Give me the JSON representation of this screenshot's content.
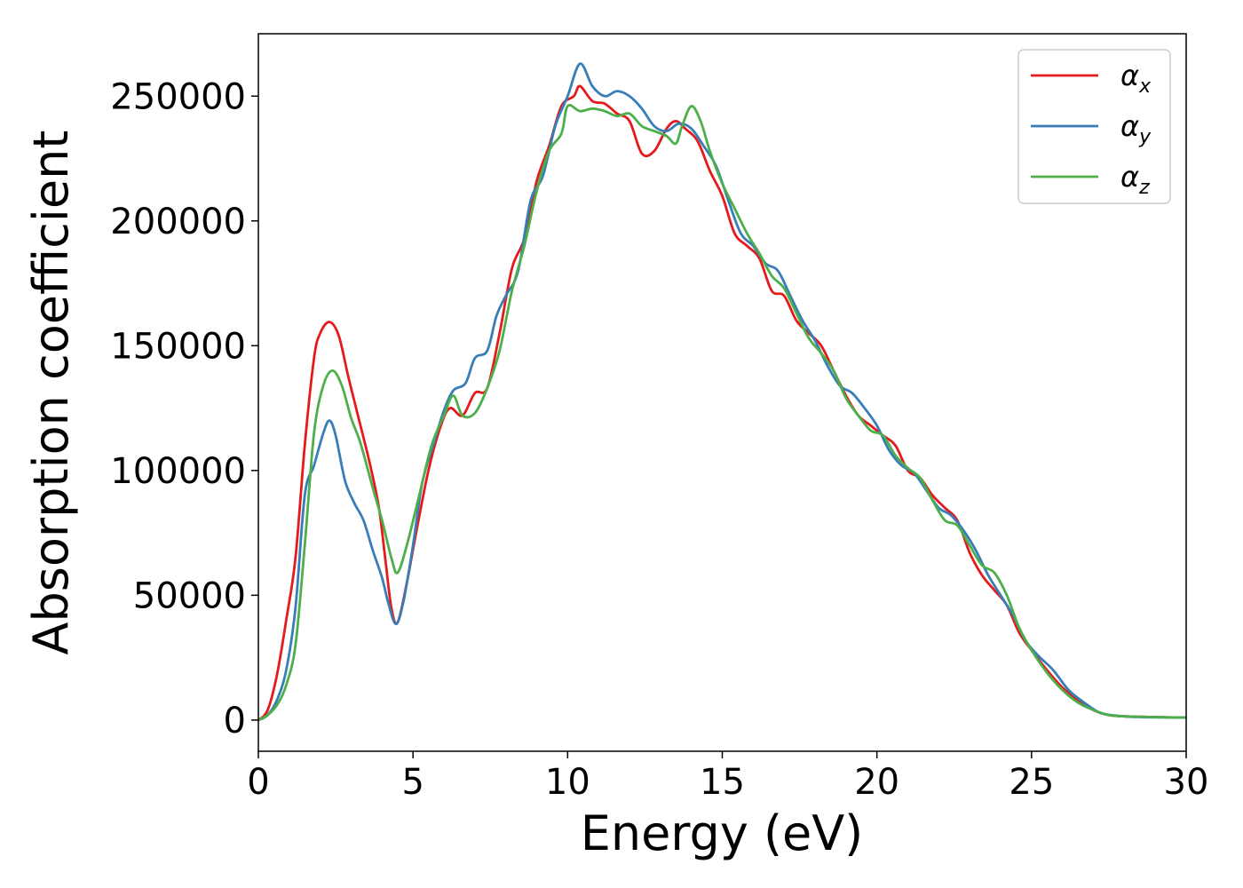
{
  "chart_data": {
    "type": "line",
    "title": "",
    "xlabel": "Energy (eV)",
    "ylabel": "Absorption coefficient",
    "xlim": [
      0,
      30
    ],
    "ylim": [
      -12500,
      275000
    ],
    "xticks": [
      0,
      5,
      10,
      15,
      20,
      25,
      30
    ],
    "yticks": [
      0,
      50000,
      100000,
      150000,
      200000,
      250000
    ],
    "grid": false,
    "legend_position": "top-right",
    "series": [
      {
        "name": "α",
        "subscript": "x",
        "color": "#e41a1c",
        "points": [
          [
            0,
            0
          ],
          [
            0.3,
            4000
          ],
          [
            0.6,
            18000
          ],
          [
            0.9,
            40000
          ],
          [
            1.2,
            65000
          ],
          [
            1.5,
            110000
          ],
          [
            1.8,
            145000
          ],
          [
            2.0,
            155000
          ],
          [
            2.3,
            159500
          ],
          [
            2.6,
            154000
          ],
          [
            2.9,
            138000
          ],
          [
            3.2,
            123000
          ],
          [
            3.6,
            103000
          ],
          [
            3.9,
            85000
          ],
          [
            4.1,
            65000
          ],
          [
            4.3,
            45000
          ],
          [
            4.5,
            39000
          ],
          [
            4.8,
            55000
          ],
          [
            5.1,
            75000
          ],
          [
            5.5,
            100000
          ],
          [
            5.9,
            118000
          ],
          [
            6.2,
            125000
          ],
          [
            6.6,
            122000
          ],
          [
            7.0,
            131000
          ],
          [
            7.4,
            133000
          ],
          [
            7.8,
            155000
          ],
          [
            8.2,
            181000
          ],
          [
            8.6,
            193000
          ],
          [
            9.0,
            216000
          ],
          [
            9.4,
            230000
          ],
          [
            9.8,
            246000
          ],
          [
            10.2,
            250000
          ],
          [
            10.4,
            254000
          ],
          [
            10.8,
            248000
          ],
          [
            11.2,
            247000
          ],
          [
            11.6,
            243000
          ],
          [
            12.0,
            240000
          ],
          [
            12.4,
            227000
          ],
          [
            12.8,
            228000
          ],
          [
            13.2,
            237000
          ],
          [
            13.5,
            240000
          ],
          [
            13.8,
            237000
          ],
          [
            14.2,
            232000
          ],
          [
            14.6,
            220000
          ],
          [
            15.0,
            210000
          ],
          [
            15.4,
            195000
          ],
          [
            15.8,
            190000
          ],
          [
            16.2,
            185000
          ],
          [
            16.6,
            172000
          ],
          [
            17.0,
            170000
          ],
          [
            17.4,
            160000
          ],
          [
            17.8,
            155000
          ],
          [
            18.2,
            150000
          ],
          [
            18.6,
            140000
          ],
          [
            19.0,
            130000
          ],
          [
            19.4,
            122000
          ],
          [
            19.8,
            118000
          ],
          [
            20.2,
            114000
          ],
          [
            20.6,
            110000
          ],
          [
            21.0,
            100000
          ],
          [
            21.4,
            97000
          ],
          [
            21.8,
            90000
          ],
          [
            22.2,
            85000
          ],
          [
            22.6,
            80000
          ],
          [
            23.0,
            67000
          ],
          [
            23.4,
            58000
          ],
          [
            23.8,
            52000
          ],
          [
            24.2,
            46000
          ],
          [
            24.6,
            35000
          ],
          [
            25.0,
            28000
          ],
          [
            25.5,
            20000
          ],
          [
            26.0,
            13000
          ],
          [
            26.5,
            8000
          ],
          [
            27.0,
            4000
          ],
          [
            27.5,
            2000
          ],
          [
            28.0,
            1500
          ],
          [
            29.0,
            1200
          ],
          [
            30.0,
            1000
          ]
        ]
      },
      {
        "name": "α",
        "subscript": "y",
        "color": "#377eb8",
        "points": [
          [
            0,
            0
          ],
          [
            0.3,
            2000
          ],
          [
            0.6,
            8000
          ],
          [
            0.9,
            20000
          ],
          [
            1.2,
            45000
          ],
          [
            1.5,
            90000
          ],
          [
            1.8,
            102000
          ],
          [
            2.1,
            115000
          ],
          [
            2.3,
            120000
          ],
          [
            2.5,
            114000
          ],
          [
            2.8,
            96000
          ],
          [
            3.1,
            87000
          ],
          [
            3.4,
            80000
          ],
          [
            3.7,
            68000
          ],
          [
            4.0,
            57000
          ],
          [
            4.2,
            47000
          ],
          [
            4.45,
            38500
          ],
          [
            4.7,
            48000
          ],
          [
            5.0,
            70000
          ],
          [
            5.3,
            95000
          ],
          [
            5.7,
            112000
          ],
          [
            6.0,
            124000
          ],
          [
            6.3,
            132000
          ],
          [
            6.7,
            135000
          ],
          [
            7.0,
            145000
          ],
          [
            7.4,
            148000
          ],
          [
            7.7,
            162000
          ],
          [
            8.0,
            170000
          ],
          [
            8.4,
            180000
          ],
          [
            8.8,
            208000
          ],
          [
            9.2,
            218000
          ],
          [
            9.6,
            238000
          ],
          [
            10.0,
            250000
          ],
          [
            10.4,
            263000
          ],
          [
            10.8,
            254000
          ],
          [
            11.2,
            250000
          ],
          [
            11.6,
            252000
          ],
          [
            12.0,
            250000
          ],
          [
            12.4,
            245000
          ],
          [
            12.8,
            238000
          ],
          [
            13.2,
            236000
          ],
          [
            13.6,
            239000
          ],
          [
            14.0,
            237000
          ],
          [
            14.4,
            230000
          ],
          [
            14.8,
            222000
          ],
          [
            15.2,
            208000
          ],
          [
            15.6,
            195000
          ],
          [
            16.0,
            190000
          ],
          [
            16.4,
            183000
          ],
          [
            16.8,
            180000
          ],
          [
            17.2,
            170000
          ],
          [
            17.6,
            160000
          ],
          [
            18.0,
            152000
          ],
          [
            18.4,
            142000
          ],
          [
            18.8,
            134000
          ],
          [
            19.2,
            131000
          ],
          [
            19.6,
            125000
          ],
          [
            20.0,
            118000
          ],
          [
            20.4,
            108000
          ],
          [
            20.8,
            102000
          ],
          [
            21.2,
            99000
          ],
          [
            21.6,
            92000
          ],
          [
            22.0,
            85000
          ],
          [
            22.4,
            82000
          ],
          [
            22.8,
            76000
          ],
          [
            23.2,
            68000
          ],
          [
            23.6,
            58000
          ],
          [
            24.0,
            50000
          ],
          [
            24.4,
            42000
          ],
          [
            24.8,
            32000
          ],
          [
            25.2,
            26000
          ],
          [
            25.7,
            20000
          ],
          [
            26.2,
            12000
          ],
          [
            26.7,
            7000
          ],
          [
            27.2,
            3000
          ],
          [
            27.7,
            1800
          ],
          [
            28.5,
            1200
          ],
          [
            30.0,
            1000
          ]
        ]
      },
      {
        "name": "α",
        "subscript": "z",
        "color": "#4daf4a",
        "points": [
          [
            0,
            0
          ],
          [
            0.3,
            2000
          ],
          [
            0.6,
            6000
          ],
          [
            0.9,
            14000
          ],
          [
            1.2,
            30000
          ],
          [
            1.5,
            70000
          ],
          [
            1.8,
            115000
          ],
          [
            2.1,
            134000
          ],
          [
            2.4,
            140000
          ],
          [
            2.7,
            134000
          ],
          [
            3.0,
            121000
          ],
          [
            3.3,
            111000
          ],
          [
            3.7,
            93000
          ],
          [
            4.0,
            80000
          ],
          [
            4.3,
            65000
          ],
          [
            4.5,
            59000
          ],
          [
            4.8,
            70000
          ],
          [
            5.2,
            90000
          ],
          [
            5.6,
            110000
          ],
          [
            6.0,
            122000
          ],
          [
            6.3,
            130000
          ],
          [
            6.6,
            122000
          ],
          [
            7.0,
            123000
          ],
          [
            7.4,
            133000
          ],
          [
            7.8,
            148000
          ],
          [
            8.2,
            172000
          ],
          [
            8.6,
            190000
          ],
          [
            9.0,
            212000
          ],
          [
            9.4,
            228000
          ],
          [
            9.8,
            235000
          ],
          [
            10.0,
            246000
          ],
          [
            10.4,
            244000
          ],
          [
            10.8,
            245000
          ],
          [
            11.2,
            244000
          ],
          [
            11.6,
            242000
          ],
          [
            12.0,
            243000
          ],
          [
            12.4,
            238000
          ],
          [
            12.8,
            236000
          ],
          [
            13.2,
            234000
          ],
          [
            13.5,
            231000
          ],
          [
            13.7,
            238000
          ],
          [
            14.0,
            246000
          ],
          [
            14.3,
            240000
          ],
          [
            14.6,
            228000
          ],
          [
            15.0,
            215000
          ],
          [
            15.4,
            205000
          ],
          [
            15.8,
            195000
          ],
          [
            16.2,
            187000
          ],
          [
            16.6,
            178000
          ],
          [
            17.0,
            173000
          ],
          [
            17.4,
            163000
          ],
          [
            17.8,
            153000
          ],
          [
            18.2,
            147000
          ],
          [
            18.6,
            140000
          ],
          [
            19.0,
            129000
          ],
          [
            19.4,
            122000
          ],
          [
            19.8,
            116000
          ],
          [
            20.2,
            114000
          ],
          [
            20.6,
            106000
          ],
          [
            21.0,
            101000
          ],
          [
            21.4,
            97000
          ],
          [
            21.8,
            88000
          ],
          [
            22.2,
            80000
          ],
          [
            22.6,
            78000
          ],
          [
            23.0,
            70000
          ],
          [
            23.4,
            62000
          ],
          [
            23.8,
            59000
          ],
          [
            24.2,
            50000
          ],
          [
            24.6,
            37000
          ],
          [
            25.0,
            28000
          ],
          [
            25.5,
            19000
          ],
          [
            26.0,
            12000
          ],
          [
            26.5,
            7000
          ],
          [
            27.0,
            4000
          ],
          [
            27.5,
            2000
          ],
          [
            28.0,
            1500
          ],
          [
            29.0,
            1200
          ],
          [
            30.0,
            1000
          ]
        ]
      }
    ]
  }
}
